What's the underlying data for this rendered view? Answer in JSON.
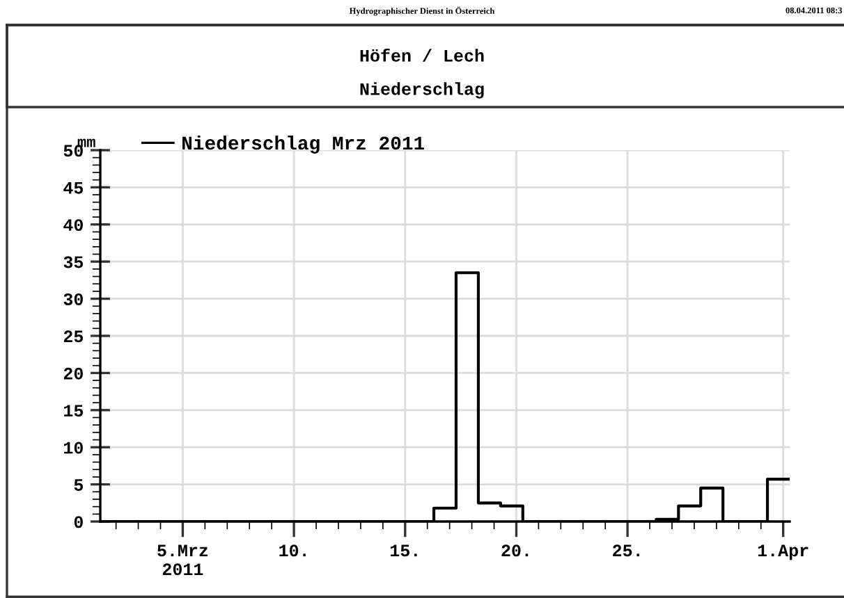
{
  "chart_data": {
    "type": "step",
    "title": "Höfen / Lech",
    "subtitle": "Niederschlag",
    "ylabel": "mm",
    "annotations": [
      "Hydrographischer Dienst in Österreich",
      "08.04.2011 08:3"
    ],
    "x": [
      "2011-03-01T07:00",
      "2011-03-02T07:00",
      "2011-03-03T07:00",
      "2011-03-04T07:00",
      "2011-03-05T07:00",
      "2011-03-06T07:00",
      "2011-03-07T07:00",
      "2011-03-08T07:00",
      "2011-03-09T07:00",
      "2011-03-10T07:00",
      "2011-03-11T07:00",
      "2011-03-12T07:00",
      "2011-03-13T07:00",
      "2011-03-14T07:00",
      "2011-03-15T07:00",
      "2011-03-16T07:00",
      "2011-03-17T07:00",
      "2011-03-18T07:00",
      "2011-03-19T07:00",
      "2011-03-20T07:00",
      "2011-03-21T07:00",
      "2011-03-22T07:00",
      "2011-03-23T07:00",
      "2011-03-24T07:00",
      "2011-03-25T07:00",
      "2011-03-26T07:00",
      "2011-03-27T07:00",
      "2011-03-28T07:00",
      "2011-03-29T07:00",
      "2011-03-30T07:00",
      "2011-03-31T07:00",
      "2011-04-01T07:00"
    ],
    "series": [
      {
        "name": "Niederschlag Mrz 2011",
        "color": "#000000",
        "values": [
          0,
          0,
          0,
          0,
          0,
          0,
          0,
          0,
          0,
          0,
          0,
          0,
          0,
          0,
          0,
          1.8,
          33.5,
          2.5,
          2.1,
          0,
          0,
          0,
          0,
          0,
          0,
          0.3,
          2.1,
          4.5,
          0,
          0,
          5.7,
          5.7
        ]
      }
    ],
    "xlim": [
      "2011-03-01T07:00",
      "2011-04-01T07:00"
    ],
    "xticks": [
      {
        "value": "2011-03-05",
        "label": "5.Mrz\n2011"
      },
      {
        "value": "2011-03-10",
        "label": "10."
      },
      {
        "value": "2011-03-15",
        "label": "15."
      },
      {
        "value": "2011-03-20",
        "label": "20."
      },
      {
        "value": "2011-03-25",
        "label": "25."
      },
      {
        "value": "2011-04-01",
        "label": "1.Apr"
      }
    ],
    "ylim": [
      0,
      50
    ],
    "yticks": [
      0,
      5,
      10,
      15,
      20,
      25,
      30,
      35,
      40,
      45,
      50
    ],
    "grid": true,
    "legend": "top left",
    "line_style": "solid",
    "marker": "none"
  }
}
